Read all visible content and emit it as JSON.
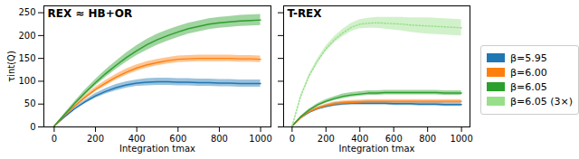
{
  "chart_data": [
    {
      "type": "line",
      "title": "REX ≈ HB+OR",
      "x_label": "Integration tmax",
      "y_label": "τint(Q)",
      "xlim": [
        -50,
        1050
      ],
      "xticks": [
        0,
        200,
        400,
        600,
        800,
        1000
      ],
      "ylim": [
        0,
        265
      ],
      "yticks": [
        0,
        50,
        100,
        150,
        200,
        250
      ],
      "x": [
        0,
        50,
        100,
        150,
        200,
        250,
        300,
        350,
        400,
        450,
        500,
        550,
        600,
        650,
        700,
        750,
        800,
        850,
        900,
        950,
        1000
      ],
      "series": [
        {
          "name": "β=5.95",
          "color": "#1f77b4",
          "line_style": "solid",
          "values": [
            2,
            22,
            40,
            55,
            68,
            78,
            86,
            92,
            96,
            98,
            99,
            99,
            98,
            98,
            97,
            97,
            96,
            96,
            95,
            95,
            95
          ],
          "lower": [
            2,
            20,
            37,
            51,
            63,
            72,
            79,
            85,
            89,
            90,
            91,
            91,
            90,
            90,
            89,
            89,
            88,
            88,
            87,
            87,
            87
          ],
          "upper": [
            2,
            24,
            43,
            59,
            73,
            84,
            93,
            99,
            103,
            106,
            107,
            107,
            106,
            106,
            105,
            105,
            104,
            104,
            103,
            103,
            103
          ]
        },
        {
          "name": "β=6.00",
          "color": "#ff7f0e",
          "line_style": "solid",
          "values": [
            2,
            25,
            46,
            65,
            82,
            96,
            109,
            120,
            129,
            136,
            141,
            145,
            148,
            149,
            150,
            150,
            150,
            150,
            149,
            149,
            148
          ],
          "lower": [
            2,
            23,
            43,
            61,
            77,
            90,
            103,
            113,
            122,
            129,
            134,
            138,
            141,
            142,
            143,
            143,
            143,
            143,
            142,
            142,
            141
          ],
          "upper": [
            2,
            27,
            49,
            69,
            87,
            102,
            115,
            127,
            136,
            143,
            148,
            152,
            155,
            156,
            157,
            157,
            157,
            157,
            156,
            156,
            155
          ]
        },
        {
          "name": "β=6.05",
          "color": "#2ca02c",
          "line_style": "solid",
          "values": [
            2,
            27,
            52,
            75,
            97,
            117,
            135,
            152,
            167,
            180,
            191,
            200,
            208,
            215,
            220,
            225,
            228,
            230,
            232,
            233,
            234
          ],
          "lower": [
            2,
            25,
            48,
            69,
            90,
            109,
            126,
            142,
            156,
            168,
            179,
            188,
            196,
            203,
            208,
            213,
            216,
            218,
            220,
            221,
            222
          ],
          "upper": [
            2,
            29,
            56,
            81,
            104,
            125,
            144,
            162,
            178,
            192,
            203,
            212,
            220,
            227,
            232,
            237,
            240,
            242,
            244,
            245,
            246
          ]
        }
      ]
    },
    {
      "type": "line",
      "title": "T-REX",
      "x_label": "Integration tmax",
      "tick_labels": "x",
      "legend": "right",
      "xlim": [
        -50,
        1050
      ],
      "xticks": [
        0,
        200,
        400,
        600,
        800,
        1000
      ],
      "ylim": [
        0,
        265
      ],
      "yticks": [
        0,
        50,
        100,
        150,
        200,
        250
      ],
      "x": [
        0,
        50,
        100,
        150,
        200,
        250,
        300,
        350,
        400,
        450,
        500,
        550,
        600,
        650,
        700,
        750,
        800,
        850,
        900,
        950,
        1000
      ],
      "series": [
        {
          "name": "β=5.95",
          "color": "#1f77b4",
          "line_style": "solid",
          "values": [
            2,
            20,
            32,
            40,
            45,
            49,
            51,
            52,
            52,
            52,
            52,
            52,
            51,
            51,
            51,
            50,
            50,
            50,
            49,
            49,
            49
          ],
          "lower": [
            2,
            19,
            30,
            37,
            42,
            45,
            47,
            48,
            48,
            48,
            48,
            48,
            47,
            47,
            47,
            46,
            46,
            46,
            45,
            45,
            45
          ],
          "upper": [
            2,
            21,
            34,
            43,
            48,
            53,
            55,
            56,
            56,
            56,
            56,
            56,
            55,
            55,
            55,
            54,
            54,
            54,
            53,
            53,
            53
          ]
        },
        {
          "name": "β=6.00",
          "color": "#ff7f0e",
          "line_style": "solid",
          "values": [
            2,
            20,
            33,
            41,
            47,
            51,
            53,
            54,
            55,
            56,
            56,
            56,
            56,
            56,
            56,
            56,
            56,
            56,
            56,
            56,
            56
          ],
          "lower": [
            2,
            19,
            31,
            38,
            44,
            47,
            49,
            50,
            51,
            52,
            52,
            52,
            52,
            52,
            52,
            52,
            52,
            52,
            52,
            52,
            52
          ],
          "upper": [
            2,
            21,
            35,
            44,
            50,
            55,
            57,
            58,
            59,
            60,
            60,
            60,
            60,
            60,
            60,
            60,
            60,
            60,
            60,
            60,
            60
          ]
        },
        {
          "name": "β=6.05",
          "color": "#2ca02c",
          "line_style": "solid",
          "values": [
            2,
            22,
            37,
            48,
            56,
            62,
            67,
            70,
            72,
            74,
            74,
            75,
            75,
            75,
            75,
            75,
            75,
            75,
            74,
            74,
            74
          ],
          "lower": [
            2,
            21,
            35,
            45,
            52,
            58,
            62,
            65,
            67,
            69,
            69,
            70,
            70,
            70,
            70,
            70,
            70,
            70,
            69,
            69,
            69
          ],
          "upper": [
            2,
            23,
            39,
            51,
            60,
            66,
            72,
            75,
            77,
            79,
            79,
            80,
            80,
            80,
            80,
            80,
            80,
            80,
            79,
            79,
            79
          ]
        },
        {
          "name": "β=6.05 (3×)",
          "color": "#98df8a",
          "line_style": "dotted",
          "values": [
            2,
            66,
            111,
            144,
            171,
            191,
            206,
            218,
            225,
            227,
            228,
            227,
            226,
            225,
            223,
            222,
            221,
            220,
            219,
            218,
            217
          ],
          "lower": [
            2,
            63,
            107,
            139,
            165,
            184,
            198,
            209,
            215,
            216,
            216,
            214,
            212,
            210,
            207,
            205,
            203,
            202,
            201,
            200,
            199
          ],
          "upper": [
            2,
            69,
            115,
            149,
            177,
            198,
            214,
            227,
            235,
            238,
            240,
            240,
            240,
            240,
            239,
            239,
            239,
            238,
            237,
            236,
            235
          ]
        }
      ]
    }
  ]
}
